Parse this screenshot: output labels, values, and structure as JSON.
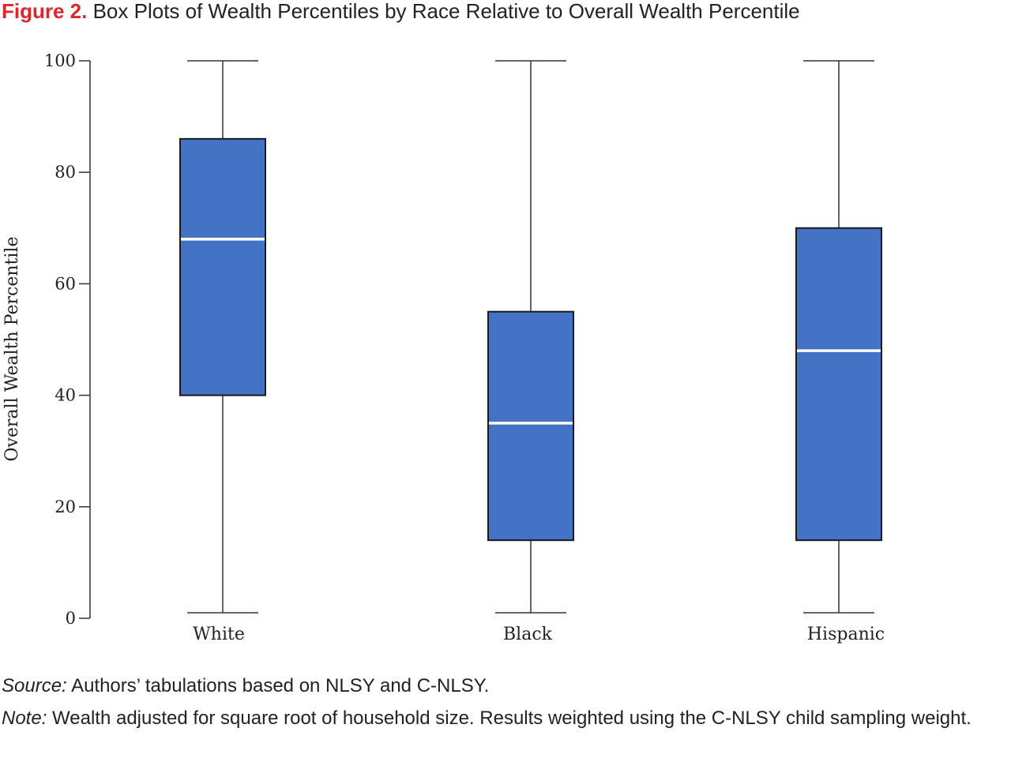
{
  "figure": {
    "number": "Figure 2.",
    "title": "Box Plots of Wealth Percentiles by Race Relative to Overall Wealth Percentile"
  },
  "chart_data": {
    "type": "box",
    "ylabel": "Overall Wealth Percentile",
    "xlabel": "",
    "ylim": [
      0,
      100
    ],
    "yticks": [
      0,
      20,
      40,
      60,
      80,
      100
    ],
    "grid": false,
    "box_color": "#4472c4",
    "median_color": "#ffffff",
    "categories": [
      "White",
      "Black",
      "Hispanic"
    ],
    "boxes": [
      {
        "category": "White",
        "min": 1,
        "q1": 40,
        "median": 68,
        "q3": 86,
        "max": 100
      },
      {
        "category": "Black",
        "min": 1,
        "q1": 14,
        "median": 35,
        "q3": 55,
        "max": 100
      },
      {
        "category": "Hispanic",
        "min": 1,
        "q1": 14,
        "median": 48,
        "q3": 70,
        "max": 100
      }
    ]
  },
  "notes": {
    "source_label": "Source:",
    "source_text": " Authors’ tabulations based on NLSY and C-NLSY.",
    "note_label": "Note:",
    "note_text": " Wealth adjusted for square root of household size. Results weighted using the C-NLSY child sampling weight."
  }
}
